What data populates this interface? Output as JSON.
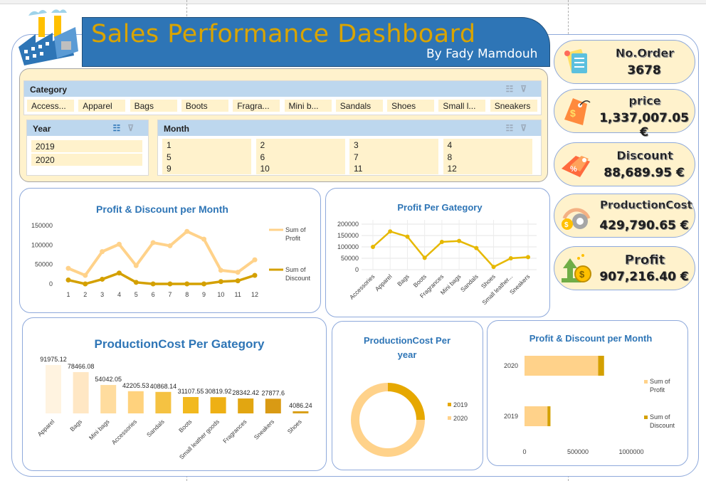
{
  "title": "Sales Performance Dashboard",
  "subtitle": "By Fady Mamdouh",
  "colors": {
    "banner": "#2e75b6",
    "title": "#d9a400",
    "accent": "#f2c94c",
    "light": "#ffd699",
    "dark": "#d4a000",
    "panel_border": "#8ea9db",
    "slicer_bg": "#fff2cc"
  },
  "icons": {
    "logo": "factory-icon",
    "filter": "multi-select-icon",
    "clear": "clear-filter-icon"
  },
  "slicers": {
    "category": {
      "label": "Category",
      "items": [
        "Access...",
        "Apparel",
        "Bags",
        "Boots",
        "Fragra...",
        "Mini b...",
        "Sandals",
        "Shoes",
        "Small l...",
        "Sneakers"
      ]
    },
    "year": {
      "label": "Year",
      "items": [
        "2019",
        "2020"
      ]
    },
    "month": {
      "label": "Month",
      "items": [
        "1",
        "2",
        "3",
        "4",
        "5",
        "6",
        "7",
        "8",
        "9",
        "10",
        "11",
        "12"
      ]
    }
  },
  "kpis": [
    {
      "label": "No.Order",
      "value": "3678",
      "icon": "order-list-icon"
    },
    {
      "label": "price",
      "value": "1,337,007.05 €",
      "icon": "price-tag-icon"
    },
    {
      "label": "Discount",
      "value": "88,689.95 €",
      "icon": "discount-tag-icon"
    },
    {
      "label": "ProductionCost",
      "value": "429,790.65 €",
      "icon": "gear-cost-icon"
    },
    {
      "label": "Profit",
      "value": "907,216.40 €",
      "icon": "money-growth-icon"
    }
  ],
  "chart_data": [
    {
      "id": "profit_discount_month_line",
      "type": "line",
      "title": "Profit & Discount per Month",
      "categories": [
        "1",
        "2",
        "3",
        "4",
        "5",
        "6",
        "7",
        "8",
        "9",
        "10",
        "11",
        "12"
      ],
      "series": [
        {
          "name": "Sum of Profit",
          "values": [
            40000,
            22000,
            83000,
            102000,
            47000,
            106000,
            98000,
            135000,
            115000,
            35000,
            30000,
            62000
          ]
        },
        {
          "name": "Sum of Discount",
          "values": [
            10000,
            0,
            12000,
            28000,
            4000,
            0,
            0,
            0,
            0,
            6000,
            8000,
            22000
          ]
        }
      ],
      "yticks": [
        "0",
        "50000",
        "100000",
        "150000"
      ],
      "ylim": [
        0,
        150000
      ],
      "legend_lines": [
        [
          "Sum of",
          "Profit"
        ],
        [
          "Sum of",
          "Discount"
        ]
      ]
    },
    {
      "id": "profit_category_line",
      "type": "line",
      "title": "Profit Per Gategory",
      "categories": [
        "Accessories",
        "Apparel",
        "Bags",
        "Boots",
        "Fragrances",
        "Mini bags",
        "Sandals",
        "Shoes",
        "Small leather...",
        "Sneakers"
      ],
      "values": [
        100000,
        168000,
        145000,
        52000,
        122000,
        126000,
        95000,
        12000,
        50000,
        55000
      ],
      "yticks": [
        "0",
        "50000",
        "100000",
        "150000",
        "200000"
      ],
      "ylim": [
        0,
        200000
      ]
    },
    {
      "id": "production_cost_category_bar",
      "type": "bar",
      "title": "ProductionCost  Per Gategory",
      "categories": [
        "Apparel",
        "Bags",
        "Mini bags",
        "Accessories",
        "Sandals",
        "Boots",
        "Small leather goods",
        "Fragrances",
        "Sneakers",
        "Shoes"
      ],
      "values": [
        91975.12,
        78466.08,
        54042.05,
        42205.53,
        40868.14,
        31107.55,
        30819.92,
        28342.42,
        27877.6,
        4086.24
      ],
      "labels": [
        "91975.12",
        "78466.08",
        "54042.05",
        "42205.53",
        "40868.14",
        "31107.55",
        "30819.92",
        "28342.42",
        "27877.6",
        "4086.24"
      ]
    },
    {
      "id": "production_cost_year_donut",
      "type": "pie",
      "title_lines": [
        "ProductionCost Per",
        "year"
      ],
      "categories": [
        "2019",
        "2020"
      ],
      "values": [
        25,
        75
      ]
    },
    {
      "id": "profit_discount_year_bar",
      "type": "bar",
      "title": "Profit & Discount per Month",
      "categories": [
        "2020",
        "2019"
      ],
      "series": [
        {
          "name": "Sum of Profit",
          "values": [
            690000,
            215000
          ]
        },
        {
          "name": "Sum of Discount",
          "values": [
            55000,
            28000
          ]
        }
      ],
      "xticks": [
        "0",
        "500000",
        "1000000"
      ],
      "xlim": [
        0,
        1000000
      ],
      "legend_lines": [
        [
          "Sum of",
          "Profit"
        ],
        [
          "Sum of",
          "Discount"
        ]
      ]
    }
  ]
}
